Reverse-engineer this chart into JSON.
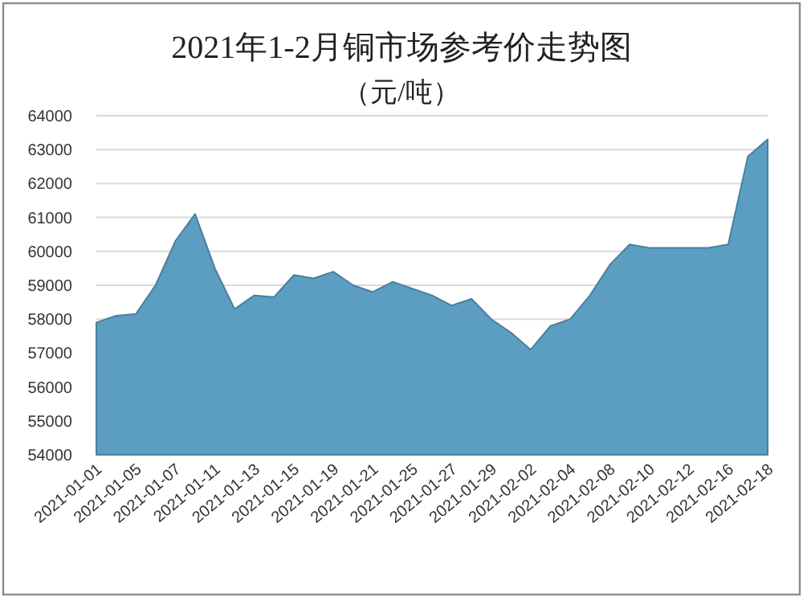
{
  "chart_data": {
    "type": "area",
    "title": "2021年1-2月铜市场参考价走势图",
    "subtitle": "（元/吨）",
    "categories": [
      "2021-01-01",
      null,
      "2021-01-05",
      null,
      "2021-01-07",
      null,
      "2021-01-11",
      null,
      "2021-01-13",
      null,
      "2021-01-15",
      null,
      "2021-01-19",
      null,
      "2021-01-21",
      null,
      "2021-01-25",
      null,
      "2021-01-27",
      null,
      "2021-01-29",
      null,
      "2021-02-02",
      null,
      "2021-02-04",
      null,
      "2021-02-08",
      null,
      "2021-02-10",
      null,
      "2021-02-12",
      null,
      "2021-02-16",
      null,
      "2021-02-18"
    ],
    "values": [
      57900,
      58100,
      58150,
      59000,
      60300,
      61100,
      59500,
      58300,
      58700,
      58650,
      59300,
      59200,
      59400,
      59000,
      58800,
      59100,
      58900,
      58700,
      58400,
      58600,
      58000,
      57600,
      57100,
      57800,
      58000,
      58700,
      59600,
      60200,
      60100,
      60100,
      60100,
      60100,
      60200,
      62800,
      63300
    ],
    "color": "#5b9ec2",
    "ylim": [
      54000,
      64000
    ],
    "yticks": [
      54000,
      55000,
      56000,
      57000,
      58000,
      59000,
      60000,
      61000,
      62000,
      63000,
      64000
    ],
    "grid": "y"
  }
}
